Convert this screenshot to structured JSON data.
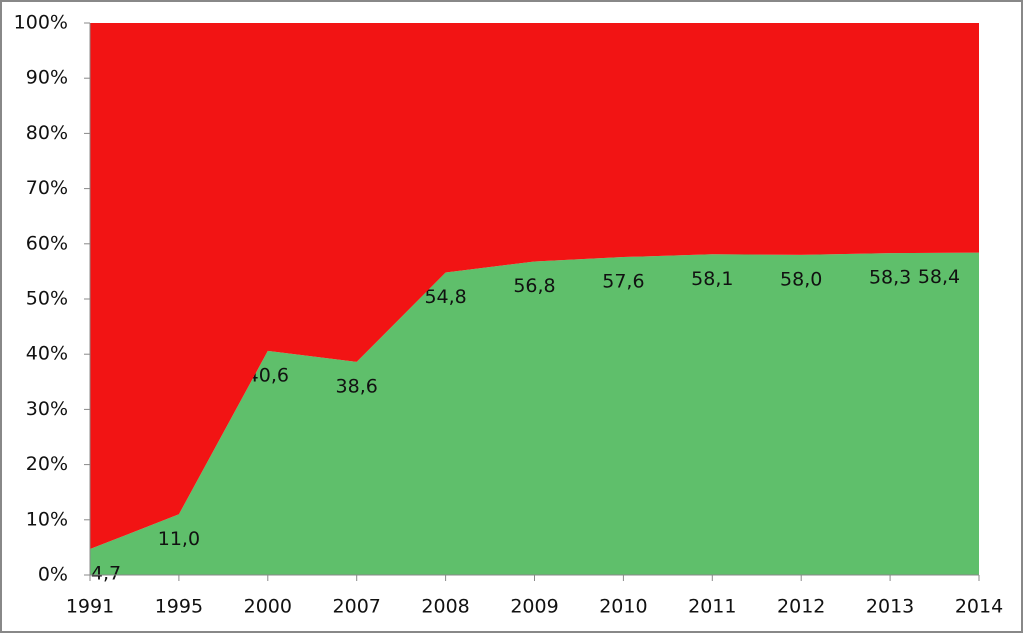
{
  "chart_data": {
    "type": "stacked_area",
    "categories": [
      "1991",
      "1995",
      "2000",
      "2007",
      "2008",
      "2009",
      "2010",
      "2011",
      "2012",
      "2013",
      "2014"
    ],
    "series": [
      {
        "color": "#5fbf6b",
        "values": [
          4.7,
          11.0,
          40.6,
          38.6,
          54.8,
          56.8,
          57.6,
          58.1,
          58.0,
          58.3,
          58.4
        ],
        "value_labels": [
          "4,7",
          "11,0",
          "40,6",
          "38,6",
          "54,8",
          "56,8",
          "57,6",
          "58,1",
          "58,0",
          "58,3",
          "58,4"
        ]
      },
      {
        "color": "#f21414",
        "values": [
          95.3,
          89.0,
          59.4,
          61.4,
          45.2,
          43.2,
          42.4,
          41.9,
          42.0,
          41.7,
          41.6
        ]
      }
    ],
    "ylim": [
      0,
      100
    ],
    "yticks": [
      {
        "value": 0,
        "label": "0%"
      },
      {
        "value": 10,
        "label": "10%"
      },
      {
        "value": 20,
        "label": "20%"
      },
      {
        "value": 30,
        "label": "30%"
      },
      {
        "value": 40,
        "label": "40%"
      },
      {
        "value": 50,
        "label": "50%"
      },
      {
        "value": 60,
        "label": "60%"
      },
      {
        "value": 70,
        "label": "70%"
      },
      {
        "value": 80,
        "label": "80%"
      },
      {
        "value": 90,
        "label": "90%"
      },
      {
        "value": 100,
        "label": "100%"
      }
    ]
  }
}
